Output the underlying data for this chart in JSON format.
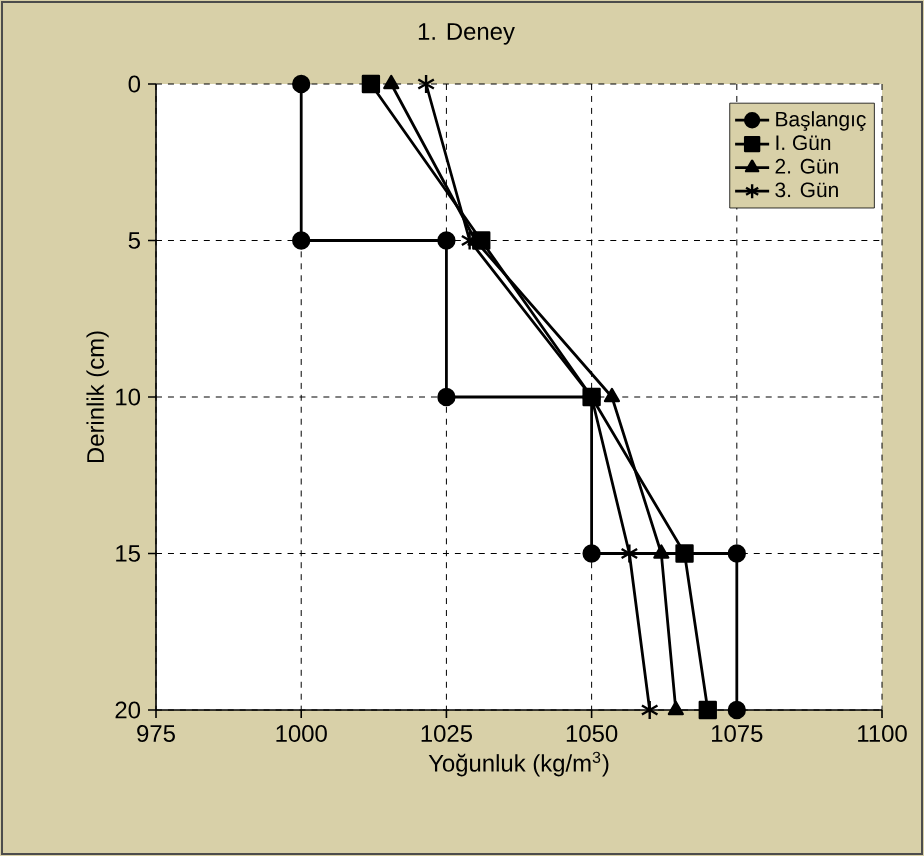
{
  "chart_data": {
    "type": "line",
    "title": "1. Deney",
    "xlabel": "Yoğunluk   (kg/m$^{3}$)",
    "ylabel": "Derinlik   (cm)",
    "xlim": [
      975,
      1100
    ],
    "xticks": [
      975,
      1000,
      1025,
      1050,
      1075,
      1100
    ],
    "ylim": [
      20,
      0
    ],
    "yticks": [
      0,
      5,
      10,
      15,
      20
    ],
    "grid": true,
    "legend": "top right",
    "line_style": "solid",
    "series": [
      {
        "name": "Başlangıç",
        "color": "#000000",
        "marker": "circle",
        "x": [
          1000,
          1000,
          1025,
          1025,
          1050,
          1050,
          1075,
          1075
        ],
        "values": [
          0,
          5,
          5,
          10,
          10,
          15,
          15,
          20
        ]
      },
      {
        "name": "I. Gün",
        "color": "#000000",
        "marker": "square",
        "x": [
          1012,
          1031,
          1050,
          1066,
          1070
        ],
        "values": [
          0,
          5,
          10,
          15,
          20
        ]
      },
      {
        "name": "2. Gün",
        "color": "#000000",
        "marker": "triangle",
        "x": [
          1015.5,
          1030,
          1053.5,
          1062,
          1064.5
        ],
        "values": [
          0,
          5,
          10,
          15,
          20
        ]
      },
      {
        "name": "3. Gün",
        "color": "#000000",
        "marker": "cross",
        "x": [
          1021.5,
          1029,
          1050,
          1056.5,
          1060
        ],
        "values": [
          0,
          5,
          10,
          15,
          20
        ]
      }
    ]
  }
}
